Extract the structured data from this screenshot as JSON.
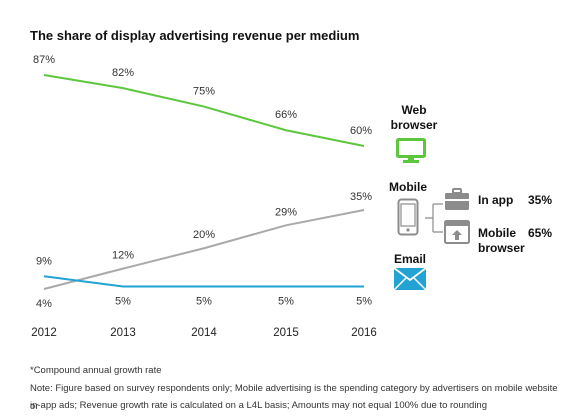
{
  "title": "The share of display advertising revenue per medium",
  "chart_data": {
    "type": "line",
    "x": [
      "2012",
      "2013",
      "2014",
      "2015",
      "2016"
    ],
    "series": [
      {
        "name": "Web browser",
        "color": "#5cc73c",
        "values": [
          87,
          82,
          75,
          66,
          60
        ],
        "labels": [
          "87%",
          "82%",
          "75%",
          "66%",
          "60%"
        ]
      },
      {
        "name": "Mobile",
        "color": "#a9a9a9",
        "values": [
          4,
          12,
          20,
          29,
          35
        ],
        "labels": [
          "4%",
          "12%",
          "20%",
          "29%",
          "35%"
        ]
      },
      {
        "name": "Email",
        "color": "#22a3d4",
        "values": [
          9,
          5,
          5,
          5,
          5
        ],
        "labels": [
          "9%",
          "5%",
          "5%",
          "5%",
          "5%"
        ]
      }
    ],
    "ylim": [
      0,
      100
    ]
  },
  "legend": {
    "web": {
      "line1": "Web",
      "line2": "browser"
    },
    "mobile": {
      "label": "Mobile"
    },
    "email": {
      "label": "Email"
    },
    "in_app": {
      "label": "In app",
      "value": "35%"
    },
    "mobile_browser": {
      "line1": "Mobile",
      "line2": "browser",
      "value": "65%"
    }
  },
  "icons": {
    "web": "monitor-icon",
    "mobile": "smartphone-icon",
    "email": "envelope-icon",
    "in_app": "briefcase-icon",
    "mobile_browser": "browser-window-icon"
  },
  "footnotes": {
    "line1": "*Compound annual growth rate",
    "line2": "Note: Figure based on survey respondents only; Mobile advertising is the spending category by advertisers on mobile website or",
    "line3": "in-app ads; Revenue growth rate is calculated on a L4L basis; Amounts may not equal 100% due to rounding"
  }
}
